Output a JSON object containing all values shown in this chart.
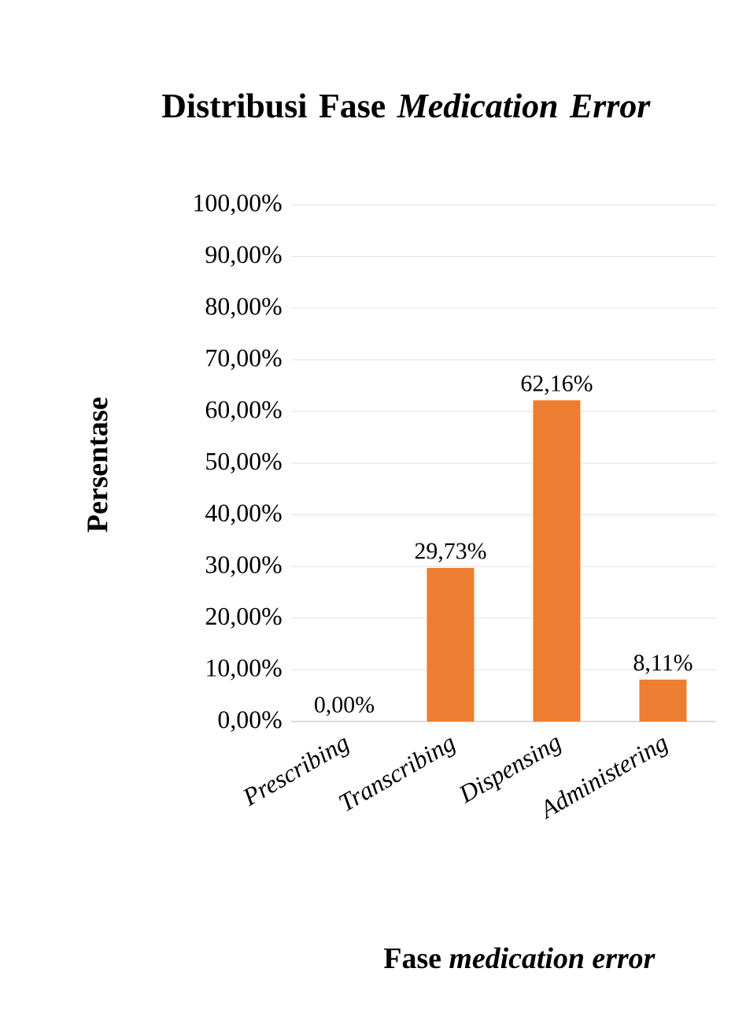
{
  "chart_data": {
    "type": "bar",
    "title": "Distribusi Fase *Medication Error*",
    "xlabel": "Fase *medication error*",
    "ylabel": "Persentase",
    "categories": [
      "Prescribing",
      "Transcribing",
      "Dispensing",
      "Administering"
    ],
    "values": [
      0,
      29.73,
      62.16,
      8.11
    ],
    "value_labels": [
      "0,00%",
      "29,73%",
      "62,16%",
      "8,11%"
    ],
    "color": "#ed7d31",
    "ylim": [
      0,
      100
    ],
    "yticks": [
      {
        "value": 0,
        "label": "0,00%"
      },
      {
        "value": 10,
        "label": "10,00%"
      },
      {
        "value": 20,
        "label": "20,00%"
      },
      {
        "value": 30,
        "label": "30,00%"
      },
      {
        "value": 40,
        "label": "40,00%"
      },
      {
        "value": 50,
        "label": "50,00%"
      },
      {
        "value": 60,
        "label": "60,00%"
      },
      {
        "value": 70,
        "label": "70,00%"
      },
      {
        "value": 80,
        "label": "80,00%"
      },
      {
        "value": 90,
        "label": "90,00%"
      },
      {
        "value": 100,
        "label": "100,00%"
      }
    ],
    "grid": "y"
  }
}
